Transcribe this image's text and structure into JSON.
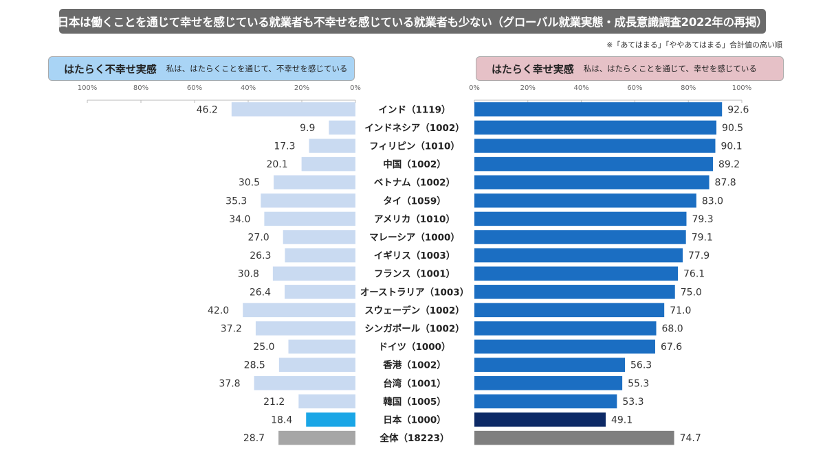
{
  "title": "日本は働くことを通じて幸せを感じている就業者も不幸せを感じている就業者も少ない（グローバル就業実態・成長意識調査2022年の再掲）",
  "note": "※「あてはまる」「ややあてはまる」合計値の高い順",
  "left_panel": {
    "title": "はたらく不幸せ実感",
    "subtitle": "私は、はたらくことを通じて、不幸せを感じている"
  },
  "right_panel": {
    "title": "はたらく幸せ実感",
    "subtitle": "私は、はたらくことを通じて、幸せを感じている"
  },
  "colors": {
    "left_bar": "#c9daf1",
    "right_bar": "#1b6ec2",
    "japan_left": "#1aa6e6",
    "japan_right": "#0d2a66",
    "total": "#a6a6a6",
    "total_right": "#7f7f7f"
  },
  "chart_data": {
    "type": "bar",
    "orientation": "horizontal-butterfly",
    "title": "日本は働くことを通じて幸せを感じている就業者も不幸せを感じている就業者も少ない（グローバル就業実態・成長意識調査2022年の再掲）",
    "categories": [
      "インド（1119）",
      "インドネシア（1002）",
      "フィリピン（1010）",
      "中国（1002）",
      "ベトナム（1002）",
      "タイ（1059）",
      "アメリカ（1010）",
      "マレーシア（1000）",
      "イギリス（1003）",
      "フランス（1001）",
      "オーストラリア（1003）",
      "スウェーデン（1002）",
      "シンガポール（1002）",
      "ドイツ（1000）",
      "香港（1002）",
      "台湾（1001）",
      "韓国（1005）",
      "日本（1000）",
      "全体（18223）"
    ],
    "series": [
      {
        "name": "はたらく不幸せ実感",
        "values": [
          46.2,
          9.9,
          17.3,
          20.1,
          30.5,
          35.3,
          34.0,
          27.0,
          26.3,
          30.8,
          26.4,
          42.0,
          37.2,
          25.0,
          28.5,
          37.8,
          21.2,
          18.4,
          28.7
        ]
      },
      {
        "name": "はたらく幸せ実感",
        "values": [
          92.6,
          90.5,
          90.1,
          89.2,
          87.8,
          83.0,
          79.3,
          79.1,
          77.9,
          76.1,
          75.0,
          71.0,
          68.0,
          67.6,
          56.3,
          55.3,
          53.3,
          49.1,
          74.7
        ]
      }
    ],
    "left_axis_ticks": [
      "100%",
      "80%",
      "60%",
      "40%",
      "20%",
      "0%"
    ],
    "right_axis_ticks": [
      "0%",
      "20%",
      "40%",
      "60%",
      "80%",
      "100%"
    ],
    "xlim": [
      0,
      100
    ],
    "unit": "%",
    "grid": false
  }
}
